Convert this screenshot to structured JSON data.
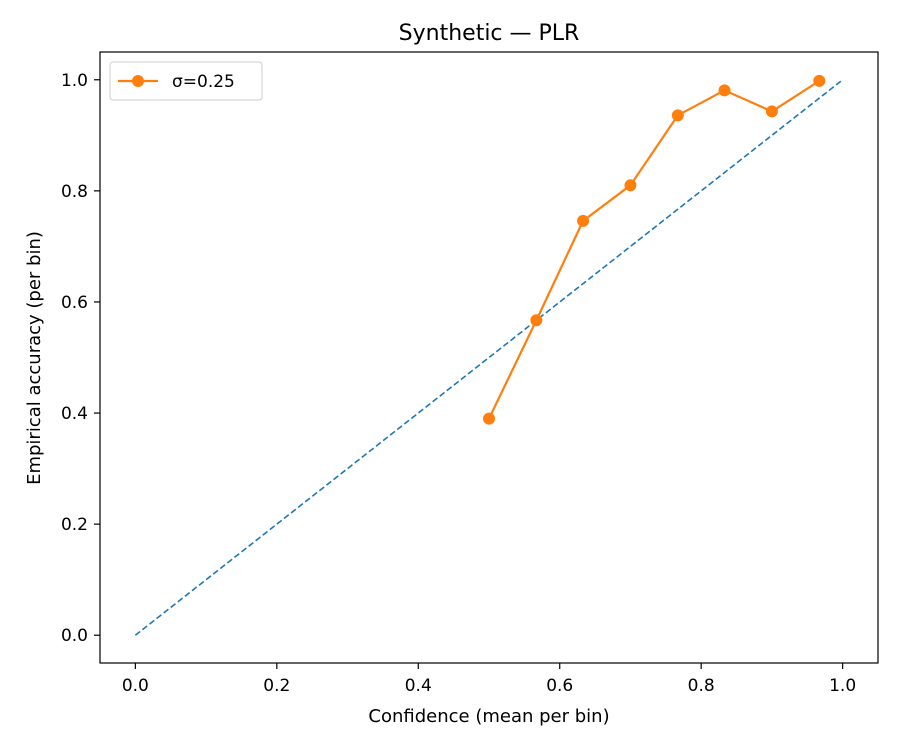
{
  "chart_data": {
    "type": "line",
    "title": "Synthetic — PLR",
    "xlabel": "Confidence (mean per bin)",
    "ylabel": "Empirical accuracy (per bin)",
    "xlim": [
      -0.05,
      1.05
    ],
    "ylim": [
      -0.05,
      1.05
    ],
    "x_ticks": [
      0.0,
      0.2,
      0.4,
      0.6,
      0.8,
      1.0
    ],
    "x_tick_labels": [
      "0.0",
      "0.2",
      "0.4",
      "0.6",
      "0.8",
      "1.0"
    ],
    "y_ticks": [
      0.0,
      0.2,
      0.4,
      0.6,
      0.8,
      1.0
    ],
    "y_tick_labels": [
      "0.0",
      "0.2",
      "0.4",
      "0.6",
      "0.8",
      "1.0"
    ],
    "grid": false,
    "legend": {
      "position": "top-left"
    },
    "reference_line": {
      "x": [
        0.0,
        1.0
      ],
      "y": [
        0.0,
        1.0
      ],
      "style": "dashed",
      "color": "#1f77b4"
    },
    "series": [
      {
        "name": "σ=0.25",
        "color": "#ff7f0e",
        "marker": "circle",
        "x": [
          0.5,
          0.567,
          0.633,
          0.7,
          0.767,
          0.833,
          0.9,
          0.967
        ],
        "y": [
          0.39,
          0.567,
          0.746,
          0.81,
          0.936,
          0.981,
          0.943,
          0.998
        ]
      }
    ]
  }
}
